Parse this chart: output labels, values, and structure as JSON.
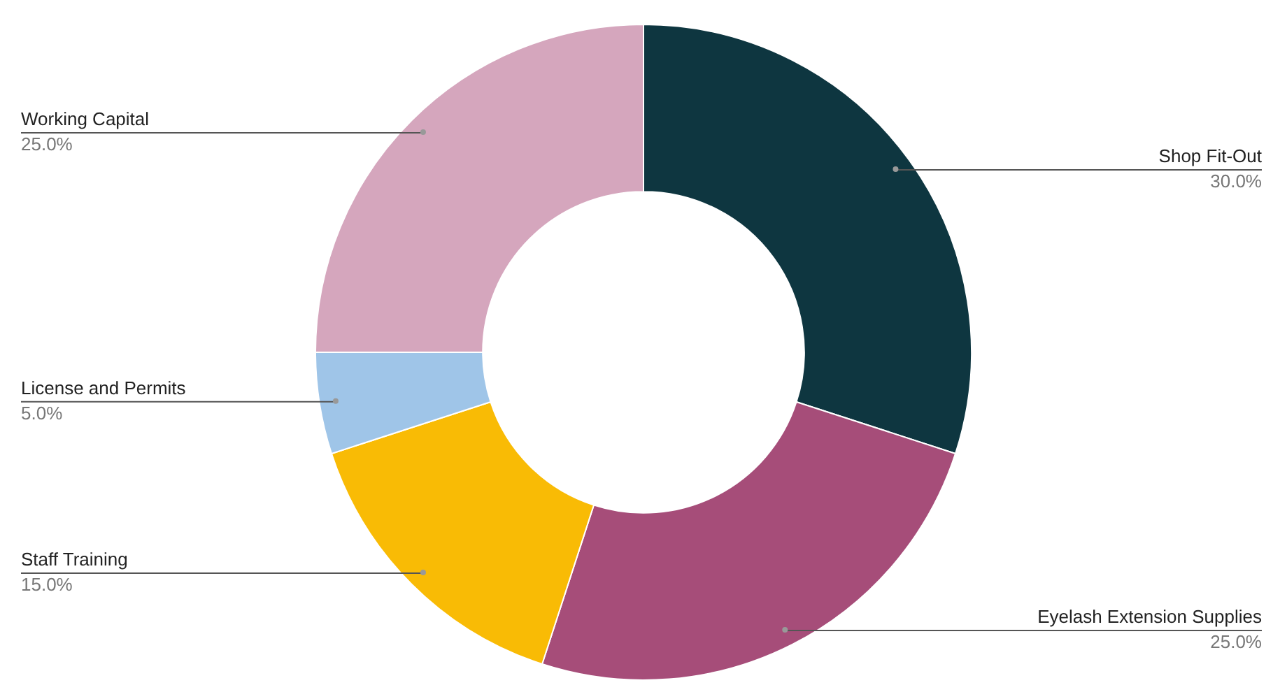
{
  "chart_data": {
    "type": "donut",
    "categories": [
      "Shop Fit-Out",
      "Eyelash Extension Supplies",
      "Staff Training",
      "License and Permits",
      "Working Capital"
    ],
    "values": [
      30,
      25,
      15,
      5,
      25
    ],
    "value_labels": [
      "30.0%",
      "25.0%",
      "15.0%",
      "5.0%",
      "25.0%"
    ],
    "colors": [
      "#0e3640",
      "#a64d79",
      "#f9bb05",
      "#9fc5e8",
      "#d5a6bd"
    ],
    "legend": false
  }
}
